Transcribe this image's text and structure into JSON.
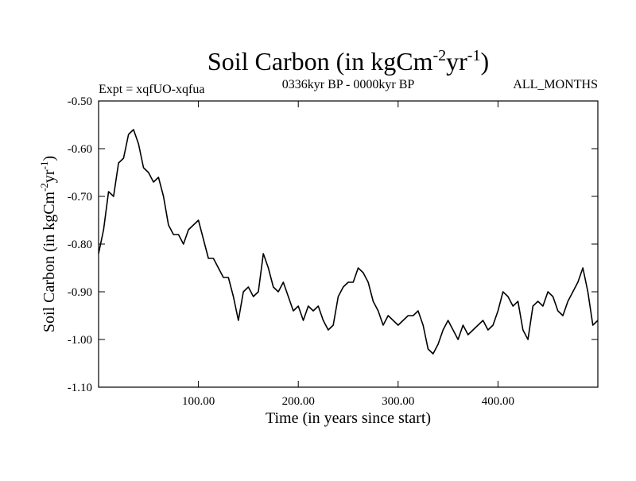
{
  "chart_data": {
    "type": "line",
    "title": "Soil Carbon (in kgCm",
    "title_sup1": "-2",
    "title_mid": "yr",
    "title_sup2": "-1",
    "title_end": ")",
    "left_label": "Expt = xqfUO-xqfua",
    "center_label": "0336kyr BP - 0000kyr BP",
    "right_label": "ALL_MONTHS",
    "xlabel": "Time (in years since start)",
    "ylabel": "Soil Carbon (in kgCm",
    "ylabel_sup1": "-2",
    "ylabel_mid": "yr",
    "ylabel_sup2": "-1",
    "ylabel_end": ")",
    "xlim": [
      0,
      500
    ],
    "ylim": [
      -1.1,
      -0.5
    ],
    "xticks": [
      100,
      200,
      300,
      400
    ],
    "xtick_labels": [
      "100.00",
      "200.00",
      "300.00",
      "400.00"
    ],
    "yticks": [
      -0.5,
      -0.6,
      -0.7,
      -0.8,
      -0.9,
      -1.0,
      -1.1
    ],
    "ytick_labels": [
      "-0.50",
      "-0.60",
      "-0.70",
      "-0.80",
      "-0.90",
      "-1.00",
      "-1.10"
    ],
    "series": [
      {
        "name": "Soil Carbon",
        "x": [
          0,
          5,
          10,
          15,
          20,
          25,
          30,
          35,
          40,
          45,
          50,
          55,
          60,
          65,
          70,
          75,
          80,
          85,
          90,
          95,
          100,
          105,
          110,
          115,
          120,
          125,
          130,
          135,
          140,
          145,
          150,
          155,
          160,
          165,
          170,
          175,
          180,
          185,
          190,
          195,
          200,
          205,
          210,
          215,
          220,
          225,
          230,
          235,
          240,
          245,
          250,
          255,
          260,
          265,
          270,
          275,
          280,
          285,
          290,
          295,
          300,
          305,
          310,
          315,
          320,
          325,
          330,
          335,
          340,
          345,
          350,
          355,
          360,
          365,
          370,
          375,
          380,
          385,
          390,
          395,
          400,
          405,
          410,
          415,
          420,
          425,
          430,
          435,
          440,
          445,
          450,
          455,
          460,
          465,
          470,
          475,
          480,
          485,
          490,
          495,
          500
        ],
        "y": [
          -0.82,
          -0.77,
          -0.69,
          -0.7,
          -0.63,
          -0.62,
          -0.57,
          -0.56,
          -0.59,
          -0.64,
          -0.65,
          -0.67,
          -0.66,
          -0.7,
          -0.76,
          -0.78,
          -0.78,
          -0.8,
          -0.77,
          -0.76,
          -0.75,
          -0.79,
          -0.83,
          -0.83,
          -0.85,
          -0.87,
          -0.87,
          -0.91,
          -0.96,
          -0.9,
          -0.89,
          -0.91,
          -0.9,
          -0.82,
          -0.85,
          -0.89,
          -0.9,
          -0.88,
          -0.91,
          -0.94,
          -0.93,
          -0.96,
          -0.93,
          -0.94,
          -0.93,
          -0.96,
          -0.98,
          -0.97,
          -0.91,
          -0.89,
          -0.88,
          -0.88,
          -0.85,
          -0.86,
          -0.88,
          -0.92,
          -0.94,
          -0.97,
          -0.95,
          -0.96,
          -0.97,
          -0.96,
          -0.95,
          -0.95,
          -0.94,
          -0.97,
          -1.02,
          -1.03,
          -1.01,
          -0.98,
          -0.96,
          -0.98,
          -1.0,
          -0.97,
          -0.99,
          -0.98,
          -0.97,
          -0.96,
          -0.98,
          -0.97,
          -0.94,
          -0.9,
          -0.91,
          -0.93,
          -0.92,
          -0.98,
          -1.0,
          -0.93,
          -0.92,
          -0.93,
          -0.9,
          -0.91,
          -0.94,
          -0.95,
          -0.92,
          -0.9,
          -0.88,
          -0.85,
          -0.9,
          -0.97,
          -0.96
        ]
      }
    ]
  }
}
